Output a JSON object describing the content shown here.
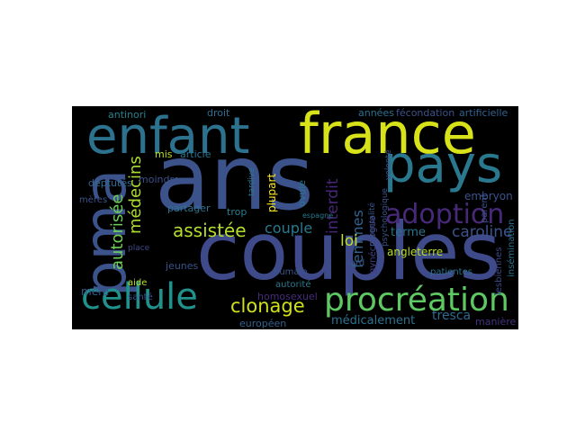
{
  "words": [
    {
      "text": "ans",
      "color": "#3b528b"
    },
    {
      "text": "couples",
      "color": "#3e4a89"
    },
    {
      "text": "enfant",
      "color": "#2c728e"
    },
    {
      "text": "france",
      "color": "#d8e219"
    },
    {
      "text": "pma",
      "color": "#3b528b"
    },
    {
      "text": "pays",
      "color": "#2a788e"
    },
    {
      "text": "cellule",
      "color": "#21918c"
    },
    {
      "text": "procréation",
      "color": "#5ec962"
    },
    {
      "text": "adoption",
      "color": "#482878"
    },
    {
      "text": "autorisée",
      "color": "#6ece58"
    },
    {
      "text": "médecins",
      "color": "#addc30"
    },
    {
      "text": "assistée",
      "color": "#b5de2b"
    },
    {
      "text": "clonage",
      "color": "#d0e11c"
    },
    {
      "text": "couple",
      "color": "#2a788e"
    },
    {
      "text": "femmes",
      "color": "#33628d"
    },
    {
      "text": "caroline",
      "color": "#3b528b"
    },
    {
      "text": "interdit",
      "color": "#482677"
    },
    {
      "text": "loi",
      "color": "#bddf26"
    },
    {
      "text": "terme",
      "color": "#2c728e"
    },
    {
      "text": "angleterre",
      "color": "#b8de29"
    },
    {
      "text": "embryon",
      "color": "#3b528b"
    },
    {
      "text": "mère",
      "color": "#38588c"
    },
    {
      "text": "tresca",
      "color": "#30698e"
    },
    {
      "text": "médicalement",
      "color": "#2c728e"
    },
    {
      "text": "artificielle",
      "color": "#33628d"
    },
    {
      "text": "fécondation",
      "color": "#3b528b"
    },
    {
      "text": "années",
      "color": "#2d708e"
    },
    {
      "text": "antinori",
      "color": "#26828e"
    },
    {
      "text": "droit",
      "color": "#2e6e8e"
    },
    {
      "text": "déptutés",
      "color": "#31688e"
    },
    {
      "text": "mis",
      "color": "#bddf26"
    },
    {
      "text": "article",
      "color": "#2c728e"
    },
    {
      "text": "plupart",
      "color": "#fde725"
    },
    {
      "text": "ovule",
      "color": "#2a788e"
    },
    {
      "text": "moindre",
      "color": "#3b528b"
    },
    {
      "text": "partager",
      "color": "#2c728e"
    },
    {
      "text": "trop",
      "color": "#287c8e"
    },
    {
      "text": "jeunes",
      "color": "#3a548c"
    },
    {
      "text": "homosexuel",
      "color": "#472d7b"
    },
    {
      "text": "européen",
      "color": "#34618d"
    },
    {
      "text": "humain",
      "color": "#39568c"
    },
    {
      "text": "autorité",
      "color": "#2a788e"
    },
    {
      "text": "gynécologue",
      "color": "#433e85"
    },
    {
      "text": "parent",
      "color": "#3b528b"
    },
    {
      "text": "insémination",
      "color": "#2c728e"
    },
    {
      "text": "volonté",
      "color": "#3b528b"
    },
    {
      "text": "patientes",
      "color": "#2c728e"
    },
    {
      "text": "lesbiennes",
      "color": "#3e4989"
    },
    {
      "text": "manière",
      "color": "#46337e"
    },
    {
      "text": "santé",
      "color": "#3b528b"
    },
    {
      "text": "aide",
      "color": "#bddf26"
    },
    {
      "text": "place",
      "color": "#3e4a89"
    },
    {
      "text": "mères",
      "color": "#3b528b"
    },
    {
      "text": "lard",
      "color": "#3a548c"
    },
    {
      "text": "tardive",
      "color": "#2a788e"
    },
    {
      "text": "psychologique",
      "color": "#3b528b"
    },
    {
      "text": "parentalité",
      "color": "#39568c"
    },
    {
      "text": "espagne",
      "color": "#2a788e"
    }
  ]
}
